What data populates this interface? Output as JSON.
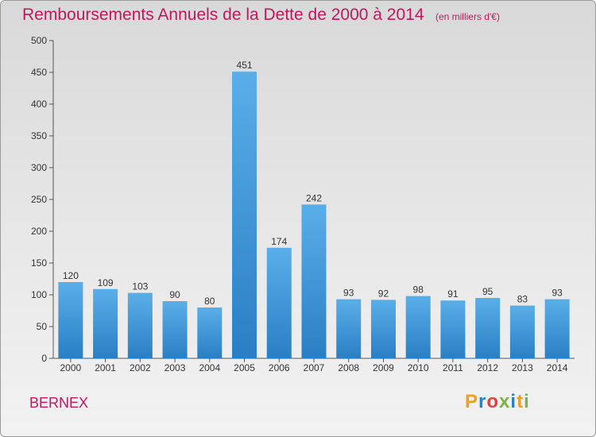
{
  "header": {
    "title": "Remboursements Annuels de la Dette de 2000 à 2014",
    "unit": "(en milliers d'€)"
  },
  "footer": {
    "city": "BERNEX",
    "logo_text": "Proxiti"
  },
  "colors": {
    "title": "#c2185b",
    "bar_light": "#5aaee8",
    "bar_dark": "#2a7fc4",
    "axis": "#555555",
    "logo_letters": [
      "#f0a020",
      "#2a7fc4",
      "#e04040",
      "#7cb342",
      "#2a7fc4",
      "#f0a020",
      "#7cb342"
    ]
  },
  "chart_data": {
    "type": "bar",
    "title": "Remboursements Annuels de la Dette de 2000 à 2014",
    "xlabel": "",
    "ylabel": "",
    "ylim": [
      0,
      500
    ],
    "yticks": [
      0,
      50,
      100,
      150,
      200,
      250,
      300,
      350,
      400,
      450,
      500
    ],
    "grid": false,
    "categories": [
      "2000",
      "2001",
      "2002",
      "2003",
      "2004",
      "2005",
      "2006",
      "2007",
      "2008",
      "2009",
      "2010",
      "2011",
      "2012",
      "2013",
      "2014"
    ],
    "values": [
      120,
      109,
      103,
      90,
      80,
      451,
      174,
      242,
      93,
      92,
      98,
      91,
      95,
      83,
      93
    ],
    "data_labels": [
      "120",
      "109",
      "103",
      "90",
      "80",
      "451",
      "174",
      "242",
      "93",
      "92",
      "98",
      "91",
      "95",
      "83",
      "93"
    ]
  }
}
